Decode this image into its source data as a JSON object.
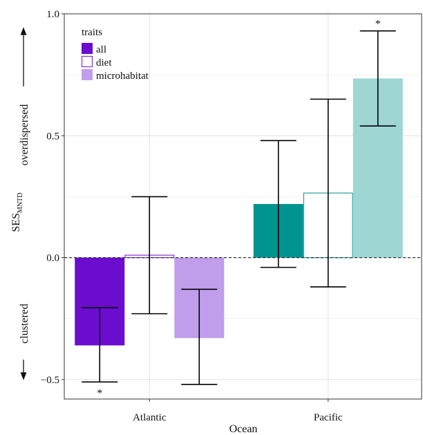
{
  "chart_data": {
    "type": "bar",
    "xlabel": "Ocean",
    "ylabel_main": "SES",
    "ylabel_sub": "MNTD",
    "annot_upper": "overdispersed",
    "annot_lower": "clustered",
    "ylim": [
      -0.58,
      1.0
    ],
    "yticks": [
      -0.5,
      0.0,
      0.5,
      1.0
    ],
    "ytick_labels": [
      "−0.5",
      "0.0",
      "0.5",
      "1.0"
    ],
    "categories": [
      "Atlantic",
      "Pacific"
    ],
    "legend_title": "traits",
    "legend_position": "top-left",
    "reference_line": 0.0,
    "grid": true,
    "series": [
      {
        "name": "all",
        "values": [
          -0.36,
          0.22
        ],
        "lower": [
          -0.51,
          -0.04
        ],
        "upper": [
          -0.205,
          0.48
        ],
        "significant": [
          true,
          false
        ]
      },
      {
        "name": "diet",
        "values": [
          0.01,
          0.265
        ],
        "lower": [
          -0.23,
          -0.12
        ],
        "upper": [
          0.25,
          0.65
        ],
        "significant": [
          false,
          false
        ]
      },
      {
        "name": "microhabitat",
        "values": [
          -0.33,
          0.735
        ],
        "lower": [
          -0.52,
          0.54
        ],
        "upper": [
          -0.13,
          0.93
        ],
        "significant": [
          false,
          true
        ]
      }
    ],
    "significance_marker": "*",
    "colors": {
      "Atlantic": {
        "all": "#6a0dcf",
        "diet_outline": "#8a3fcf",
        "microhabitat": "#c09eeb"
      },
      "Pacific": {
        "all": "#009490",
        "diet_outline": "#33a7a3",
        "microhabitat": "#9ed6d4"
      },
      "legend": {
        "all": "#6a0dcf",
        "diet_outline": "#8a3fcf",
        "microhabitat": "#c09eeb"
      }
    }
  }
}
